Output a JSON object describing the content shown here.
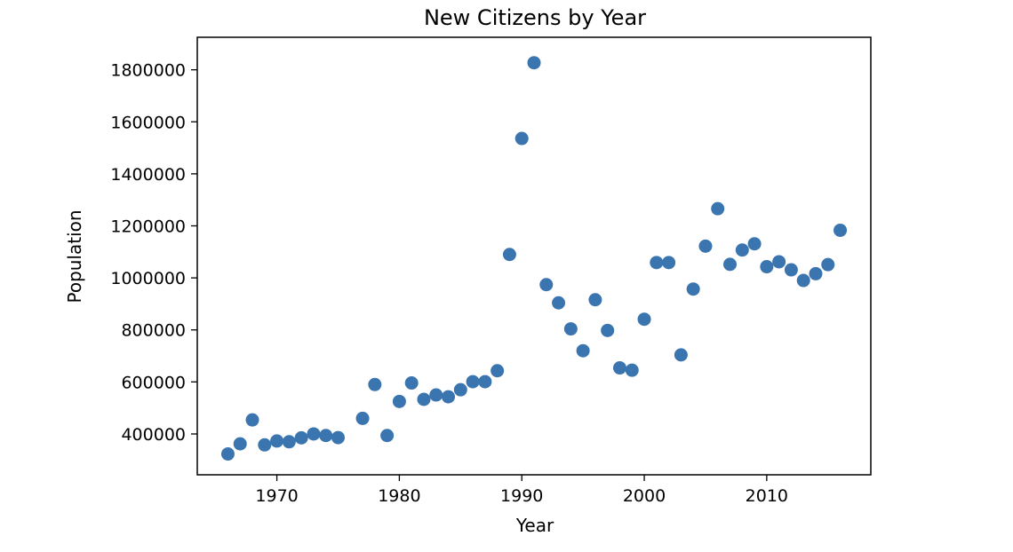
{
  "chart_data": {
    "type": "scatter",
    "title": "New Citizens by Year",
    "xlabel": "Year",
    "ylabel": "Population",
    "xlim": [
      1963.5,
      2018.5
    ],
    "ylim": [
      243000,
      1925000
    ],
    "xticks": [
      1970,
      1980,
      1990,
      2000,
      2010
    ],
    "xtick_labels": [
      "1970",
      "1980",
      "1990",
      "2000",
      "2010"
    ],
    "yticks": [
      400000,
      600000,
      800000,
      1000000,
      1200000,
      1400000,
      1600000,
      1800000
    ],
    "ytick_labels": [
      "400000",
      "600000",
      "800000",
      "1000000",
      "1200000",
      "1400000",
      "1600000",
      "1800000"
    ],
    "marker_color": "#3b75af",
    "grid": false,
    "x": [
      1966,
      1967,
      1968,
      1969,
      1970,
      1971,
      1972,
      1973,
      1974,
      1975,
      1977,
      1978,
      1979,
      1980,
      1981,
      1982,
      1983,
      1984,
      1985,
      1986,
      1987,
      1988,
      1989,
      1990,
      1991,
      1992,
      1993,
      1994,
      1995,
      1996,
      1997,
      1998,
      1999,
      2000,
      2001,
      2002,
      2003,
      2004,
      2005,
      2006,
      2007,
      2008,
      2009,
      2010,
      2011,
      2012,
      2013,
      2014,
      2015,
      2016
    ],
    "y": [
      323000,
      362000,
      454000,
      358000,
      373000,
      370000,
      385000,
      400000,
      394000,
      386000,
      460000,
      590000,
      394000,
      525000,
      596000,
      533000,
      550000,
      543000,
      570000,
      601000,
      601000,
      643000,
      1090000,
      1536000,
      1827000,
      974000,
      904000,
      804000,
      720000,
      916000,
      798000,
      654000,
      645000,
      841000,
      1059000,
      1059000,
      704000,
      957000,
      1122000,
      1266000,
      1052000,
      1107000,
      1131000,
      1043000,
      1062000,
      1031000,
      990000,
      1016000,
      1051000,
      1183000
    ]
  }
}
